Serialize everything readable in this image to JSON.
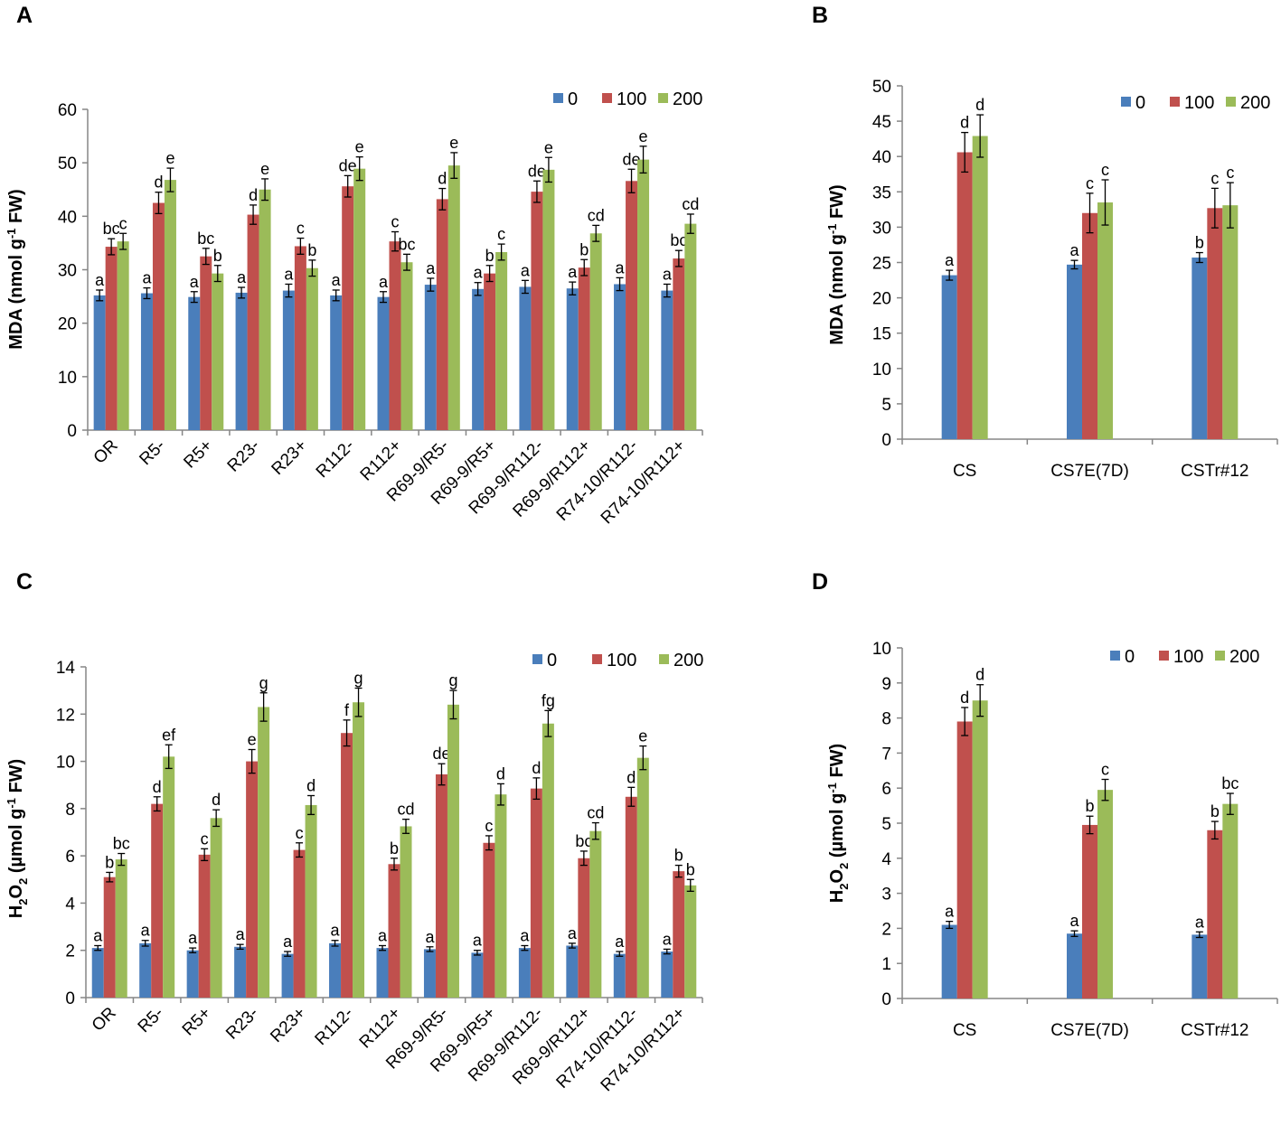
{
  "figure": {
    "panel_labels": [
      "A",
      "B",
      "C",
      "D"
    ]
  },
  "chart_data": [
    {
      "id": "A",
      "type": "bar",
      "title": "",
      "xlabel": "",
      "ylabel": "MDA (nmol g-1 FW)",
      "ylabel_parts": [
        "MDA (nmol g",
        "-1",
        " FW)"
      ],
      "ylim": [
        0,
        60
      ],
      "yticks": [
        0,
        10,
        20,
        30,
        40,
        50,
        60
      ],
      "grid": false,
      "legend": "top-right",
      "categories": [
        "OR",
        "R5-",
        "R5+",
        "R23-",
        "R23+",
        "R112-",
        "R112+",
        "R69-9/R5-",
        "R69-9/R5+",
        "R69-9/R112-",
        "R69-9/R112+",
        "R74-10/R112-",
        "R74-10/R112+"
      ],
      "series": [
        {
          "name": "0",
          "color": "#4a7ebb",
          "values": [
            25.2,
            25.6,
            24.9,
            25.7,
            26.1,
            25.2,
            24.9,
            27.2,
            26.4,
            26.8,
            26.5,
            27.3,
            26.1
          ],
          "errors": [
            1.0,
            1.0,
            1.0,
            1.0,
            1.2,
            1.0,
            1.0,
            1.2,
            1.2,
            1.2,
            1.2,
            1.2,
            1.2
          ],
          "letters": [
            "a",
            "a",
            "a",
            "a",
            "a",
            "a",
            "a",
            "a",
            "a",
            "a",
            "a",
            "a",
            "a"
          ]
        },
        {
          "name": "100",
          "color": "#c0504d",
          "values": [
            34.3,
            42.5,
            32.5,
            40.3,
            34.4,
            45.6,
            35.3,
            43.2,
            29.3,
            44.6,
            30.4,
            46.6,
            32.1
          ],
          "errors": [
            1.5,
            2.0,
            1.5,
            1.8,
            1.5,
            2.0,
            1.8,
            2.0,
            1.5,
            2.0,
            1.5,
            2.2,
            1.5
          ],
          "letters": [
            "bc",
            "d",
            "bc",
            "d",
            "c",
            "de",
            "c",
            "d",
            "b",
            "de",
            "b",
            "de",
            "bc"
          ]
        },
        {
          "name": "200",
          "color": "#9bbb59",
          "values": [
            35.3,
            46.8,
            29.3,
            45.0,
            30.3,
            48.9,
            31.4,
            49.5,
            33.3,
            48.7,
            36.8,
            50.6,
            38.6
          ],
          "errors": [
            1.5,
            2.2,
            1.5,
            2.0,
            1.5,
            2.2,
            1.5,
            2.4,
            1.5,
            2.3,
            1.5,
            2.5,
            1.8
          ],
          "letters": [
            "c",
            "e",
            "b",
            "e",
            "b",
            "e",
            "bc",
            "e",
            "c",
            "e",
            "cd",
            "e",
            "cd"
          ]
        }
      ]
    },
    {
      "id": "B",
      "type": "bar",
      "title": "",
      "xlabel": "",
      "ylabel": "MDA (nmol g-1 FW)",
      "ylabel_parts": [
        "MDA (nmol g",
        "-1",
        " FW)"
      ],
      "ylim": [
        0,
        50
      ],
      "yticks": [
        0,
        5,
        10,
        15,
        20,
        25,
        30,
        35,
        40,
        45,
        50
      ],
      "grid": false,
      "legend": "top-right",
      "categories": [
        "CS",
        "CS7E(7D)",
        "CSTr#12"
      ],
      "series": [
        {
          "name": "0",
          "color": "#4a7ebb",
          "values": [
            23.2,
            24.7,
            25.7
          ],
          "errors": [
            0.7,
            0.6,
            0.7
          ],
          "letters": [
            "a",
            "a",
            "b"
          ]
        },
        {
          "name": "100",
          "color": "#c0504d",
          "values": [
            40.6,
            32.0,
            32.7
          ],
          "errors": [
            2.8,
            2.8,
            2.8
          ],
          "letters": [
            "d",
            "c",
            "c"
          ]
        },
        {
          "name": "200",
          "color": "#9bbb59",
          "values": [
            42.9,
            33.5,
            33.1
          ],
          "errors": [
            3.0,
            3.2,
            3.2
          ],
          "letters": [
            "d",
            "c",
            "c"
          ]
        }
      ]
    },
    {
      "id": "C",
      "type": "bar",
      "title": "",
      "xlabel": "",
      "ylabel": "H2O2 (µmol g-1 FW)",
      "ylabel_parts": [
        "H",
        "2",
        "O",
        "2",
        " (µmol g",
        "-1",
        " FW)"
      ],
      "ylim": [
        0,
        14
      ],
      "yticks": [
        0,
        2,
        4,
        6,
        8,
        10,
        12,
        14
      ],
      "grid": false,
      "legend": "top-right",
      "categories": [
        "OR",
        "R5-",
        "R5+",
        "R23-",
        "R23+",
        "R112-",
        "R112+",
        "R69-9/R5-",
        "R69-9/R5+",
        "R69-9/R112-",
        "R69-9/R112+",
        "R74-10/R112-",
        "R74-10/R112+"
      ],
      "series": [
        {
          "name": "0",
          "color": "#4a7ebb",
          "values": [
            2.1,
            2.3,
            2.0,
            2.15,
            1.85,
            2.3,
            2.1,
            2.05,
            1.9,
            2.1,
            2.2,
            1.85,
            1.95
          ],
          "errors": [
            0.1,
            0.12,
            0.1,
            0.1,
            0.1,
            0.12,
            0.1,
            0.1,
            0.1,
            0.1,
            0.1,
            0.1,
            0.1
          ],
          "letters": [
            "a",
            "a",
            "a",
            "a",
            "a",
            "a",
            "a",
            "a",
            "a",
            "a",
            "a",
            "a",
            "a"
          ]
        },
        {
          "name": "100",
          "color": "#c0504d",
          "values": [
            5.1,
            8.2,
            6.05,
            10.0,
            6.25,
            11.2,
            5.65,
            9.45,
            6.55,
            8.85,
            5.9,
            8.5,
            5.35
          ],
          "errors": [
            0.2,
            0.3,
            0.25,
            0.5,
            0.3,
            0.55,
            0.25,
            0.45,
            0.3,
            0.45,
            0.3,
            0.4,
            0.25
          ],
          "letters": [
            "b",
            "d",
            "c",
            "e",
            "c",
            "f",
            "b",
            "de",
            "c",
            "d",
            "bc",
            "d",
            "b"
          ]
        },
        {
          "name": "200",
          "color": "#9bbb59",
          "values": [
            5.85,
            10.2,
            7.6,
            12.3,
            8.15,
            12.5,
            7.25,
            12.4,
            8.6,
            11.6,
            7.05,
            10.15,
            4.75
          ],
          "errors": [
            0.25,
            0.5,
            0.35,
            0.6,
            0.4,
            0.6,
            0.3,
            0.6,
            0.45,
            0.55,
            0.35,
            0.5,
            0.25
          ],
          "letters": [
            "bc",
            "ef",
            "d",
            "g",
            "d",
            "g",
            "cd",
            "g",
            "d",
            "fg",
            "cd",
            "e",
            "b"
          ]
        }
      ]
    },
    {
      "id": "D",
      "type": "bar",
      "title": "",
      "xlabel": "",
      "ylabel": "H2O2 (µmol g-1 FW)",
      "ylabel_parts": [
        "H",
        "2",
        "O",
        "2",
        " (µmol g",
        "-1",
        " FW)"
      ],
      "ylim": [
        0,
        10
      ],
      "yticks": [
        0,
        1,
        2,
        3,
        4,
        5,
        6,
        7,
        8,
        9,
        10
      ],
      "grid": false,
      "legend": "top-right",
      "categories": [
        "CS",
        "CS7E(7D)",
        "CSTr#12"
      ],
      "series": [
        {
          "name": "0",
          "color": "#4a7ebb",
          "values": [
            2.1,
            1.85,
            1.82
          ],
          "errors": [
            0.1,
            0.08,
            0.08
          ],
          "letters": [
            "a",
            "a",
            "a"
          ]
        },
        {
          "name": "100",
          "color": "#c0504d",
          "values": [
            7.9,
            4.95,
            4.8
          ],
          "errors": [
            0.4,
            0.25,
            0.25
          ],
          "letters": [
            "d",
            "b",
            "b"
          ]
        },
        {
          "name": "200",
          "color": "#9bbb59",
          "values": [
            8.5,
            5.95,
            5.55
          ],
          "errors": [
            0.45,
            0.3,
            0.3
          ],
          "letters": [
            "d",
            "c",
            "bc"
          ]
        }
      ]
    }
  ]
}
